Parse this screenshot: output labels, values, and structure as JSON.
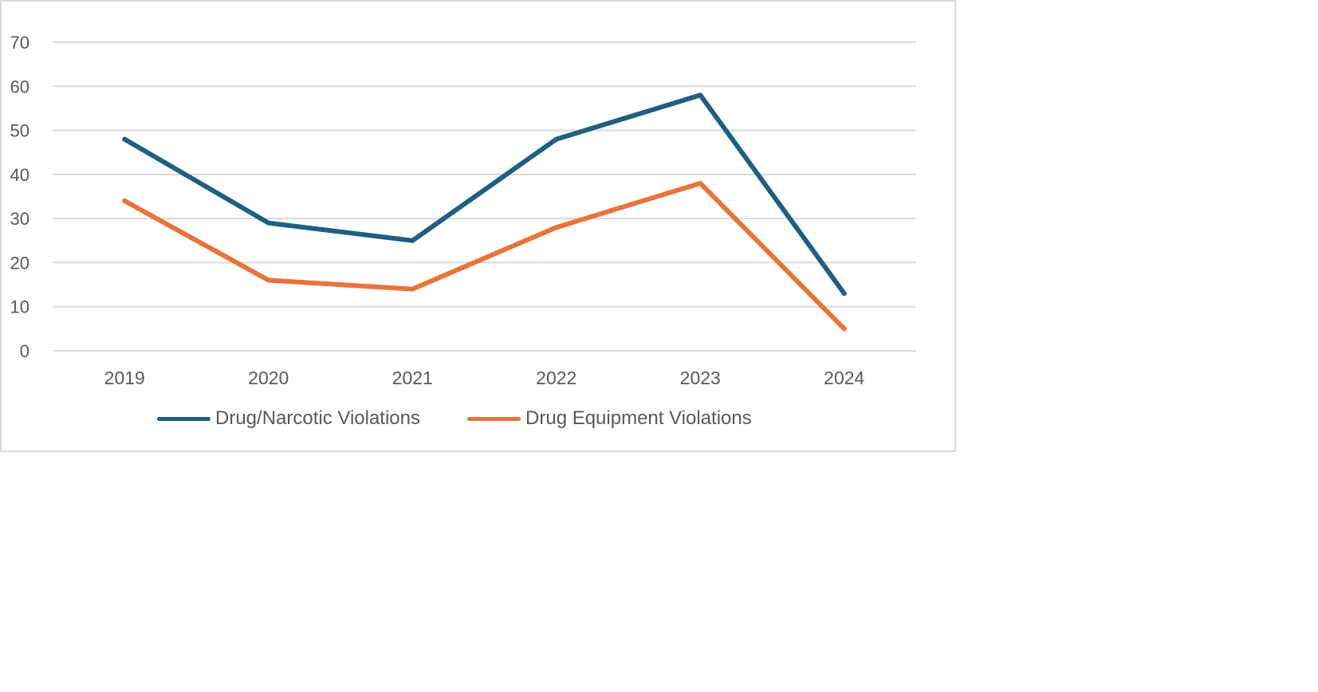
{
  "chart_data": {
    "type": "line",
    "title": "",
    "categories": [
      "2019",
      "2020",
      "2021",
      "2022",
      "2023",
      "2024"
    ],
    "series": [
      {
        "name": "Drug/Narcotic Violations",
        "color": "#1f5f80",
        "values": [
          48,
          29,
          25,
          48,
          58,
          13
        ]
      },
      {
        "name": "Drug Equipment Violations",
        "color": "#e8743b",
        "values": [
          34,
          16,
          14,
          28,
          38,
          5
        ]
      }
    ],
    "ylim": [
      0,
      70
    ],
    "yticks": [
      0,
      10,
      20,
      30,
      40,
      50,
      60,
      70
    ],
    "xlabel": "",
    "ylabel": "",
    "grid": true,
    "legend_position": "bottom"
  }
}
